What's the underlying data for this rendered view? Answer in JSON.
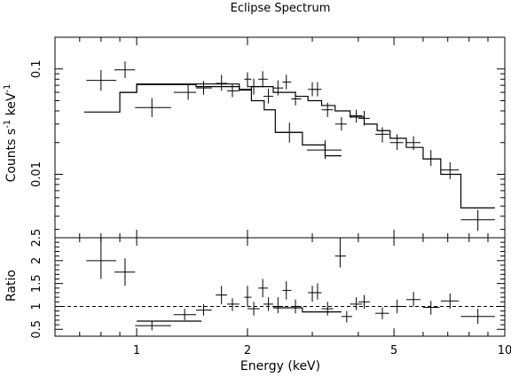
{
  "chart_data": [
    {
      "type": "scatter",
      "title": "Eclipse Spectrum",
      "xlabel": "",
      "ylabel": "Counts s$^{-1}$ keV$^{-1}$",
      "ylabel_parts": {
        "pre": "Counts s",
        "sup1": "-1",
        "mid": " keV",
        "sup2": "-1"
      },
      "x_scale": "log",
      "y_scale": "log",
      "xlim": [
        0.6,
        10
      ],
      "ylim": [
        0.0025,
        0.2
      ],
      "yticks": [
        {
          "v": 0.01,
          "label": "0.01"
        },
        {
          "v": 0.1,
          "label": "0.1"
        }
      ],
      "series": [
        {
          "style": "crosses",
          "points": [
            {
              "x": 0.8,
              "dx": [
                0.73,
                0.88
              ],
              "y": 0.078,
              "dy": [
                0.062,
                0.098
              ]
            },
            {
              "x": 0.93,
              "dx": [
                0.87,
                0.99
              ],
              "y": 0.098,
              "dy": [
                0.082,
                0.118
              ]
            },
            {
              "x": 1.1,
              "dx": [
                0.99,
                1.24
              ],
              "y": 0.043,
              "dy": [
                0.035,
                0.053
              ]
            },
            {
              "x": 1.38,
              "dx": [
                1.26,
                1.45
              ],
              "y": 0.06,
              "dy": [
                0.051,
                0.072
              ]
            },
            {
              "x": 1.52,
              "dx": [
                1.45,
                1.6
              ],
              "y": 0.066,
              "dy": [
                0.057,
                0.077
              ]
            },
            {
              "x": 1.7,
              "dx": [
                1.64,
                1.76
              ],
              "y": 0.073,
              "dy": [
                0.062,
                0.088
              ]
            },
            {
              "x": 1.82,
              "dx": [
                1.76,
                1.9
              ],
              "y": 0.062,
              "dy": [
                0.054,
                0.071
              ]
            },
            {
              "x": 2.0,
              "dx": [
                1.96,
                2.05
              ],
              "y": 0.08,
              "dy": [
                0.067,
                0.093
              ]
            },
            {
              "x": 2.08,
              "dx": [
                2.0,
                2.16
              ],
              "y": 0.068,
              "dy": [
                0.057,
                0.081
              ]
            },
            {
              "x": 2.2,
              "dx": [
                2.14,
                2.27
              ],
              "y": 0.08,
              "dy": [
                0.067,
                0.095
              ]
            },
            {
              "x": 2.28,
              "dx": [
                2.21,
                2.35
              ],
              "y": 0.055,
              "dy": [
                0.047,
                0.065
              ]
            },
            {
              "x": 2.42,
              "dx": [
                2.35,
                2.5
              ],
              "y": 0.066,
              "dy": [
                0.056,
                0.078
              ]
            },
            {
              "x": 2.55,
              "dx": [
                2.49,
                2.63
              ],
              "y": 0.075,
              "dy": [
                0.064,
                0.088
              ]
            },
            {
              "x": 2.7,
              "dx": [
                2.63,
                2.8
              ],
              "y": 0.052,
              "dy": [
                0.045,
                0.061
              ]
            },
            {
              "x": 3.0,
              "dx": [
                2.92,
                3.08
              ],
              "y": 0.064,
              "dy": [
                0.055,
                0.075
              ]
            },
            {
              "x": 3.1,
              "dx": [
                3.02,
                3.18
              ],
              "y": 0.064,
              "dy": [
                0.055,
                0.075
              ]
            },
            {
              "x": 3.3,
              "dx": [
                3.18,
                3.42
              ],
              "y": 0.041,
              "dy": [
                0.035,
                0.048
              ]
            },
            {
              "x": 3.6,
              "dx": [
                3.46,
                3.72
              ],
              "y": 0.03,
              "dy": [
                0.026,
                0.035
              ]
            },
            {
              "x": 3.95,
              "dx": [
                3.8,
                4.1
              ],
              "y": 0.036,
              "dy": [
                0.031,
                0.041
              ]
            },
            {
              "x": 4.15,
              "dx": [
                4.0,
                4.3
              ],
              "y": 0.034,
              "dy": [
                0.029,
                0.04
              ]
            },
            {
              "x": 4.65,
              "dx": [
                4.45,
                4.85
              ],
              "y": 0.024,
              "dy": [
                0.02,
                0.028
              ]
            },
            {
              "x": 5.1,
              "dx": [
                4.88,
                5.3
              ],
              "y": 0.02,
              "dy": [
                0.017,
                0.024
              ]
            },
            {
              "x": 5.65,
              "dx": [
                5.4,
                5.9
              ],
              "y": 0.02,
              "dy": [
                0.017,
                0.023
              ]
            },
            {
              "x": 6.3,
              "dx": [
                6.0,
                6.65
              ],
              "y": 0.014,
              "dy": [
                0.012,
                0.017
              ]
            },
            {
              "x": 7.1,
              "dx": [
                6.7,
                7.5
              ],
              "y": 0.011,
              "dy": [
                0.009,
                0.013
              ]
            },
            {
              "x": 8.45,
              "dx": [
                7.6,
                9.4
              ],
              "y": 0.0037,
              "dy": [
                0.0029,
                0.0046
              ]
            },
            {
              "x": 2.6,
              "dx": [
                2.38,
                2.82
              ],
              "y": 0.025,
              "dy": [
                0.02,
                0.031
              ]
            },
            {
              "x": 3.25,
              "dx": [
                2.9,
                3.6
              ],
              "y": 0.017,
              "dy": [
                0.014,
                0.021
              ]
            }
          ]
        },
        {
          "style": "step",
          "bins": [
            {
              "x0": 0.72,
              "x1": 0.9,
              "y": 0.039
            },
            {
              "x0": 0.9,
              "x1": 1.0,
              "y": 0.06
            },
            {
              "x0": 1.0,
              "x1": 1.45,
              "y": 0.071
            },
            {
              "x0": 1.45,
              "x1": 1.9,
              "y": 0.068
            },
            {
              "x0": 1.9,
              "x1": 2.05,
              "y": 0.064
            },
            {
              "x0": 2.05,
              "x1": 2.35,
              "y": 0.068
            },
            {
              "x0": 2.35,
              "x1": 2.7,
              "y": 0.06
            },
            {
              "x0": 2.7,
              "x1": 2.92,
              "y": 0.055
            },
            {
              "x0": 2.92,
              "x1": 3.18,
              "y": 0.05
            },
            {
              "x0": 3.18,
              "x1": 3.46,
              "y": 0.045
            },
            {
              "x0": 3.46,
              "x1": 3.8,
              "y": 0.04
            },
            {
              "x0": 3.8,
              "x1": 4.15,
              "y": 0.035
            },
            {
              "x0": 4.15,
              "x1": 4.5,
              "y": 0.03
            },
            {
              "x0": 4.5,
              "x1": 4.88,
              "y": 0.026
            },
            {
              "x0": 4.88,
              "x1": 5.4,
              "y": 0.022
            },
            {
              "x0": 5.4,
              "x1": 6.0,
              "y": 0.018
            },
            {
              "x0": 6.0,
              "x1": 6.7,
              "y": 0.014
            },
            {
              "x0": 6.7,
              "x1": 7.6,
              "y": 0.01
            },
            {
              "x0": 7.6,
              "x1": 9.4,
              "y": 0.0048
            }
          ]
        },
        {
          "style": "step",
          "bins": [
            {
              "x0": 0.9,
              "x1": 1.0,
              "y": 0.06
            },
            {
              "x0": 1.0,
              "x1": 1.45,
              "y": 0.072
            },
            {
              "x0": 1.45,
              "x1": 1.9,
              "y": 0.072
            },
            {
              "x0": 1.9,
              "x1": 2.05,
              "y": 0.063
            },
            {
              "x0": 2.05,
              "x1": 2.22,
              "y": 0.05
            },
            {
              "x0": 2.22,
              "x1": 2.38,
              "y": 0.041
            },
            {
              "x0": 2.38,
              "x1": 2.82,
              "y": 0.025
            },
            {
              "x0": 2.82,
              "x1": 3.25,
              "y": 0.019
            },
            {
              "x0": 3.25,
              "x1": 3.6,
              "y": 0.015
            }
          ]
        }
      ]
    },
    {
      "type": "scatter",
      "title": "",
      "xlabel": "Energy (keV)",
      "ylabel": "Ratio",
      "x_scale": "log",
      "y_scale": "linear",
      "xlim": [
        0.6,
        10
      ],
      "ylim": [
        0.35,
        2.5
      ],
      "xticks": [
        {
          "v": 1,
          "label": "1"
        },
        {
          "v": 2,
          "label": "2"
        },
        {
          "v": 5,
          "label": "5"
        },
        {
          "v": 10,
          "label": "10"
        }
      ],
      "yticks": [
        {
          "v": 0.5,
          "label": "0.5"
        },
        {
          "v": 1,
          "label": "1"
        },
        {
          "v": 1.5,
          "label": "1.5"
        },
        {
          "v": 2,
          "label": "2"
        },
        {
          "v": 2.5,
          "label": "2.5"
        }
      ],
      "reference_line": 1,
      "series": [
        {
          "style": "crosses",
          "points": [
            {
              "x": 0.8,
              "dx": [
                0.73,
                0.88
              ],
              "y": 2.0,
              "dy": [
                1.6,
                2.5
              ]
            },
            {
              "x": 0.93,
              "dx": [
                0.87,
                0.99
              ],
              "y": 1.75,
              "dy": [
                1.45,
                2.05
              ]
            },
            {
              "x": 1.1,
              "dx": [
                0.99,
                1.24
              ],
              "y": 0.58,
              "dy": [
                0.48,
                0.68
              ]
            },
            {
              "x": 1.35,
              "dx": [
                1.26,
                1.45
              ],
              "y": 0.82,
              "dy": [
                0.7,
                0.95
              ]
            },
            {
              "x": 1.52,
              "dx": [
                1.45,
                1.6
              ],
              "y": 0.92,
              "dy": [
                0.8,
                1.05
              ]
            },
            {
              "x": 1.7,
              "dx": [
                1.64,
                1.76
              ],
              "y": 1.25,
              "dy": [
                1.05,
                1.45
              ]
            },
            {
              "x": 1.82,
              "dx": [
                1.76,
                1.9
              ],
              "y": 1.05,
              "dy": [
                0.9,
                1.18
              ]
            },
            {
              "x": 2.0,
              "dx": [
                1.96,
                2.05
              ],
              "y": 1.2,
              "dy": [
                1.0,
                1.45
              ]
            },
            {
              "x": 2.08,
              "dx": [
                2.0,
                2.16
              ],
              "y": 0.95,
              "dy": [
                0.8,
                1.1
              ]
            },
            {
              "x": 2.2,
              "dx": [
                2.14,
                2.27
              ],
              "y": 1.4,
              "dy": [
                1.2,
                1.6
              ]
            },
            {
              "x": 2.28,
              "dx": [
                2.21,
                2.35
              ],
              "y": 1.05,
              "dy": [
                0.9,
                1.2
              ]
            },
            {
              "x": 2.42,
              "dx": [
                2.35,
                2.5
              ],
              "y": 1.0,
              "dy": [
                0.85,
                1.2
              ]
            },
            {
              "x": 2.55,
              "dx": [
                2.49,
                2.63
              ],
              "y": 1.35,
              "dy": [
                1.15,
                1.55
              ]
            },
            {
              "x": 2.7,
              "dx": [
                2.63,
                2.8
              ],
              "y": 1.0,
              "dy": [
                0.85,
                1.15
              ]
            },
            {
              "x": 3.0,
              "dx": [
                2.92,
                3.08
              ],
              "y": 1.3,
              "dy": [
                1.1,
                1.45
              ]
            },
            {
              "x": 3.1,
              "dx": [
                3.02,
                3.18
              ],
              "y": 1.3,
              "dy": [
                1.15,
                1.5
              ]
            },
            {
              "x": 3.3,
              "dx": [
                3.18,
                3.42
              ],
              "y": 0.95,
              "dy": [
                0.8,
                1.1
              ]
            },
            {
              "x": 3.57,
              "dx": [
                3.46,
                3.7
              ],
              "y": 2.1,
              "dy": [
                1.85,
                2.5
              ]
            },
            {
              "x": 3.72,
              "dx": [
                3.6,
                3.85
              ],
              "y": 0.78,
              "dy": [
                0.65,
                0.9
              ]
            },
            {
              "x": 3.95,
              "dx": [
                3.8,
                4.1
              ],
              "y": 1.05,
              "dy": [
                0.92,
                1.2
              ]
            },
            {
              "x": 4.15,
              "dx": [
                4.0,
                4.3
              ],
              "y": 1.1,
              "dy": [
                0.95,
                1.25
              ]
            },
            {
              "x": 4.65,
              "dx": [
                4.45,
                4.85
              ],
              "y": 0.85,
              "dy": [
                0.72,
                0.98
              ]
            },
            {
              "x": 5.1,
              "dx": [
                4.88,
                5.3
              ],
              "y": 1.0,
              "dy": [
                0.85,
                1.15
              ]
            },
            {
              "x": 5.65,
              "dx": [
                5.4,
                5.9
              ],
              "y": 1.15,
              "dy": [
                1.0,
                1.32
              ]
            },
            {
              "x": 6.3,
              "dx": [
                6.0,
                6.65
              ],
              "y": 0.98,
              "dy": [
                0.82,
                1.12
              ]
            },
            {
              "x": 7.1,
              "dx": [
                6.7,
                7.5
              ],
              "y": 1.12,
              "dy": [
                0.95,
                1.28
              ]
            },
            {
              "x": 8.45,
              "dx": [
                7.6,
                9.4
              ],
              "y": 0.78,
              "dy": [
                0.62,
                0.95
              ]
            }
          ]
        },
        {
          "style": "step",
          "bins": [
            {
              "x0": 1.0,
              "x1": 1.5,
              "y": 0.68
            },
            {
              "x0": 2.35,
              "x1": 2.82,
              "y": 0.97
            },
            {
              "x0": 2.82,
              "x1": 3.6,
              "y": 0.88
            }
          ]
        }
      ]
    }
  ]
}
